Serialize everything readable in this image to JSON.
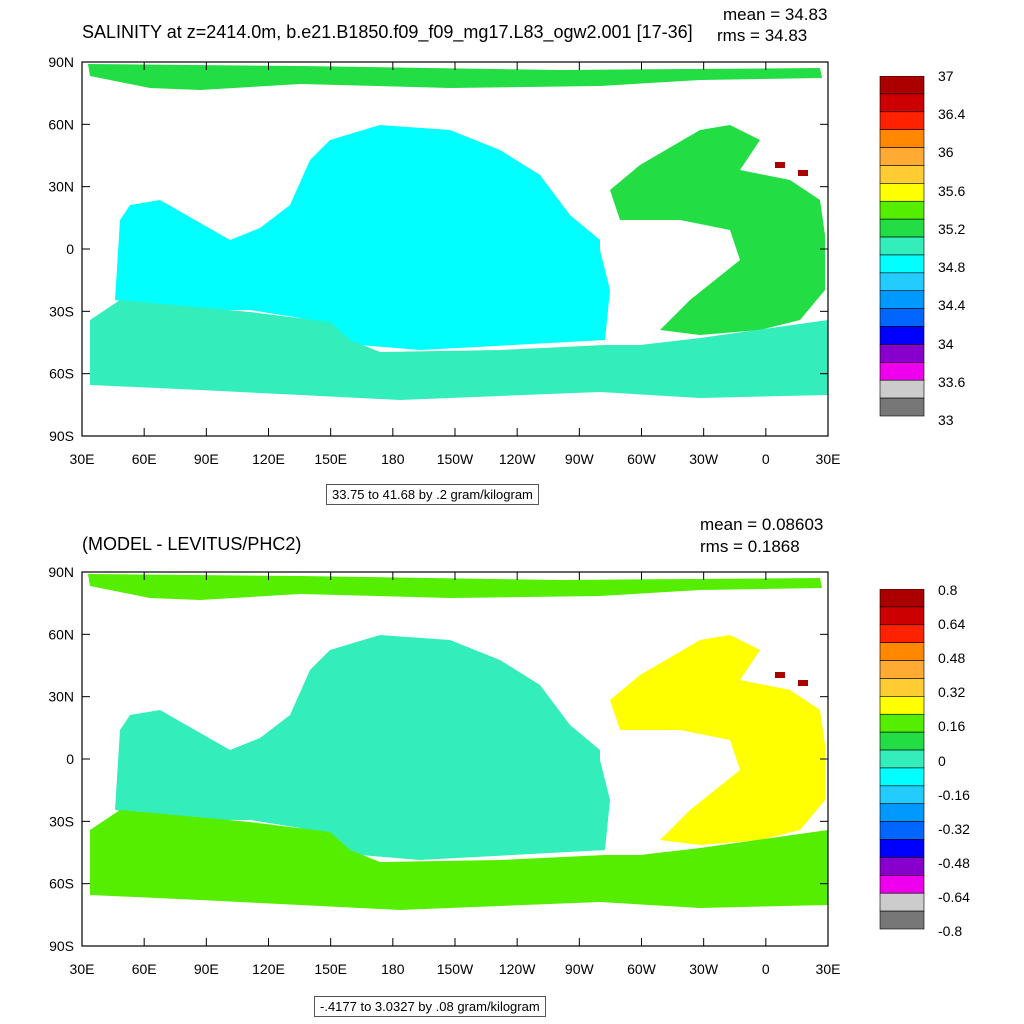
{
  "panels": [
    {
      "title": "SALINITY at z=2414.0m, b.e21.B1850.f09_f09_mg17.L83_ogw2.001 [17-36]",
      "mean": "mean = 34.83",
      "rms": "rms = 34.83",
      "info": "33.75 to 41.68 by .2 gram/kilogram",
      "colorbar": {
        "labels": [
          "37",
          "36.4",
          "36",
          "35.6",
          "35.2",
          "34.8",
          "34.4",
          "34",
          "33.6",
          "33"
        ],
        "colors": [
          "#aa0000",
          "#cc0000",
          "#ff2200",
          "#ff8800",
          "#ffaa33",
          "#ffcc33",
          "#ffff00",
          "#55ee00",
          "#22dd44",
          "#33eebb",
          "#00ffff",
          "#22ccff",
          "#0099ff",
          "#0066ff",
          "#0000ff",
          "#8800cc",
          "#ee00ee",
          "#cccccc",
          "#777777"
        ]
      },
      "ocean_colors": {
        "pacific": "#00ffff",
        "atlantic": "#22dd44",
        "southern": "#33eebb",
        "arctic": "#22dd44",
        "mediterranean": "#aa0000"
      }
    },
    {
      "title": "(MODEL - LEVITUS/PHC2)",
      "mean": "mean = 0.08603",
      "rms": "rms = 0.1868",
      "info": "-.4177 to 3.0327 by .08 gram/kilogram",
      "colorbar": {
        "labels": [
          "0.8",
          "0.64",
          "0.48",
          "0.32",
          "0.16",
          "0",
          "-0.16",
          "-0.32",
          "-0.48",
          "-0.64",
          "-0.8"
        ],
        "colors": [
          "#aa0000",
          "#cc0000",
          "#ff2200",
          "#ff8800",
          "#ffaa33",
          "#ffcc33",
          "#ffff00",
          "#55ee00",
          "#22dd44",
          "#33eebb",
          "#00ffff",
          "#22ccff",
          "#0099ff",
          "#0066ff",
          "#0000ff",
          "#8800cc",
          "#ee00ee",
          "#cccccc",
          "#777777"
        ]
      },
      "ocean_colors": {
        "pacific": "#33eebb",
        "atlantic": "#ffff00",
        "southern": "#55ee00",
        "arctic": "#55ee00",
        "mediterranean": "#aa0000"
      }
    }
  ],
  "axes": {
    "lat_labels": [
      "90N",
      "60N",
      "30N",
      "0",
      "30S",
      "60S",
      "90S"
    ],
    "lon_labels": [
      "30E",
      "60E",
      "90E",
      "120E",
      "150E",
      "180",
      "150W",
      "120W",
      "90W",
      "60W",
      "30W",
      "0",
      "30E"
    ]
  }
}
